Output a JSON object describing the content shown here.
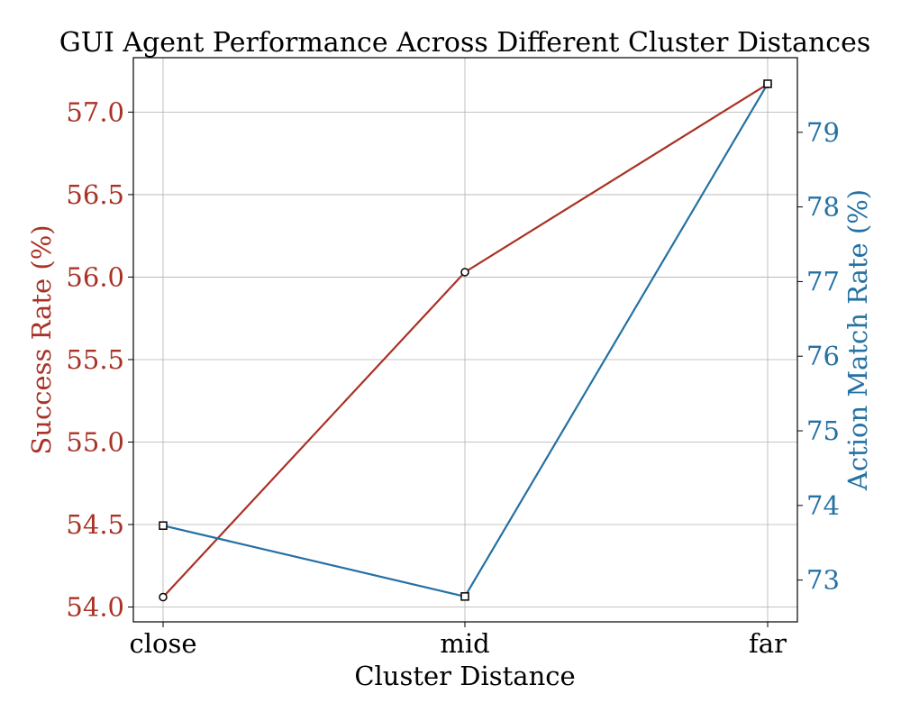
{
  "chart_data": {
    "type": "line",
    "title": "GUI Agent Performance Across Different Cluster Distances",
    "xlabel": "Cluster Distance",
    "categories": [
      "close",
      "mid",
      "far"
    ],
    "grid": true,
    "y_left": {
      "label": "Success Rate (%)",
      "color": "#a93226",
      "ylim": [
        53.91,
        57.33
      ],
      "ticks": [
        "54.0",
        "54.5",
        "55.0",
        "55.5",
        "56.0",
        "56.5",
        "57.0"
      ],
      "tick_values": [
        54.0,
        54.5,
        55.0,
        55.5,
        56.0,
        56.5,
        57.0
      ]
    },
    "y_right": {
      "label": "Action Match Rate (%)",
      "color": "#2471a3",
      "ylim": [
        72.44,
        80.0
      ],
      "ticks": [
        "73",
        "74",
        "75",
        "76",
        "77",
        "78",
        "79"
      ],
      "tick_values": [
        73,
        74,
        75,
        76,
        77,
        78,
        79
      ]
    },
    "series": [
      {
        "axis": "left",
        "marker": "circle",
        "color": "#a93226",
        "values": [
          54.06,
          56.03,
          57.17
        ]
      },
      {
        "axis": "right",
        "marker": "square",
        "color": "#2471a3",
        "values": [
          73.73,
          72.78,
          79.65
        ]
      }
    ]
  }
}
